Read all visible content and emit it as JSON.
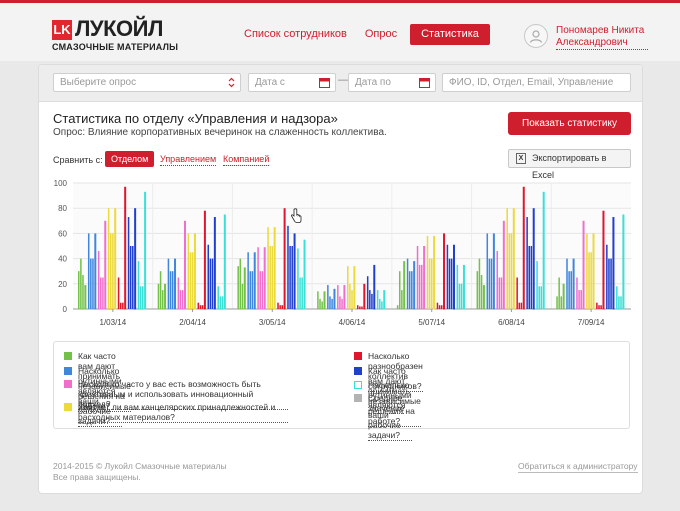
{
  "header": {
    "logo_mark": "LK",
    "logo_name": "ЛУКОЙЛ",
    "logo_sub": "СМАЗОЧНЫЕ МАТЕРИАЛЫ",
    "nav": [
      {
        "label": "Список сотрудников",
        "active": false
      },
      {
        "label": "Опрос",
        "active": false
      },
      {
        "label": "Статистика",
        "active": true
      }
    ],
    "user_name": "Пономарев Никита Александрович"
  },
  "filters": {
    "survey_placeholder": "Выберите опрос",
    "date_from_placeholder": "Дата с",
    "date_to_placeholder": "Дата по",
    "search_placeholder": "ФИО, ID, Отдел, Email, Управление",
    "dash": "—"
  },
  "main": {
    "title": "Статистика по отделу «Управления и надзора»",
    "subtitle": "Опрос: Влияние корпоративных вечеринок на слаженность коллектива.",
    "show_button": "Показать статистику",
    "compare_label": "Сравнить с:",
    "compare_options": [
      "Отделом",
      "Управлением",
      "Компанией"
    ],
    "export_button": "Экспортировать в Excel",
    "export_icon_text": "X"
  },
  "colors": {
    "accent": "#cf1f2e",
    "q1": "#74c14a",
    "q2": "#3f86de",
    "q3": "#f06ecc",
    "q4": "#ecd93a",
    "q5": "#e0152e",
    "q6": "#1f3fcf",
    "q7": "#39e0d6",
    "avg": "#b3b3b3"
  },
  "chart_data": {
    "type": "bar",
    "ylim": [
      0,
      100
    ],
    "yticks": [
      0,
      20,
      40,
      60,
      80,
      100
    ],
    "categories": [
      "1/03/14",
      "2/04/14",
      "3/05/14",
      "4/06/14",
      "5/07/14",
      "6/08/14",
      "7/09/14"
    ],
    "series": [
      {
        "name": "Как часто вам дают принимать независимые решения на работе?",
        "color": "#74c14a",
        "pattern": [
          30,
          40,
          27,
          19
        ]
      },
      {
        "name": "Насколько рутинными являются ваши рабочие задачи?",
        "color": "#3f86de",
        "pattern": [
          60,
          40,
          40,
          60
        ]
      },
      {
        "name": "Насколько часто у вас есть возможность быть креативным и использовать инновационный подход?",
        "color": "#f06ecc",
        "pattern": [
          46,
          25,
          25,
          70
        ]
      },
      {
        "name": "Хватает ли вам канцелярских принадлежностей и расходных материалов?",
        "color": "#ecd93a",
        "pattern": [
          80,
          60,
          60,
          80
        ]
      },
      {
        "name": "Насколько разнообразен коллектив сотрудников?",
        "color": "#e0152e",
        "pattern": [
          25,
          5,
          5,
          97
        ]
      },
      {
        "name": "Как часто вам дают принимать независимые решения на работе?",
        "color": "#1f3fcf",
        "pattern": [
          73,
          50,
          50,
          80
        ]
      },
      {
        "name": "Насколько рутинными являются ваши рабочие задачи?",
        "color": "#39e0d6",
        "pattern": [
          38,
          18,
          18,
          93
        ]
      },
      {
        "name": "Среднее значение",
        "color": "#b3b3b3",
        "pattern": []
      }
    ],
    "groups": [
      [
        [
          30,
          40,
          27,
          19
        ],
        [
          60,
          40,
          40,
          60
        ],
        [
          46,
          25,
          25,
          70
        ],
        [
          80,
          60,
          60,
          80
        ],
        [
          25,
          5,
          5,
          97
        ],
        [
          73,
          50,
          50,
          80
        ],
        [
          38,
          18,
          18,
          93
        ]
      ],
      [
        [
          20,
          30,
          15,
          20
        ],
        [
          40,
          30,
          30,
          40
        ],
        [
          25,
          15,
          15,
          70
        ],
        [
          60,
          45,
          45,
          60
        ],
        [
          5,
          3,
          3,
          78
        ],
        [
          51,
          40,
          40,
          73
        ],
        [
          18,
          10,
          10,
          75
        ]
      ],
      [
        [
          34,
          40,
          20,
          33
        ],
        [
          45,
          30,
          30,
          45
        ],
        [
          49,
          30,
          30,
          49
        ],
        [
          65,
          50,
          50,
          65
        ],
        [
          5,
          3,
          3,
          80
        ],
        [
          66,
          50,
          50,
          60
        ],
        [
          48,
          25,
          25,
          55
        ]
      ],
      [
        [
          14,
          8,
          6,
          14
        ],
        [
          19,
          10,
          8,
          16
        ],
        [
          19,
          10,
          8,
          19
        ],
        [
          34,
          20,
          15,
          34
        ],
        [
          3,
          2,
          2,
          20
        ],
        [
          26,
          15,
          12,
          35
        ],
        [
          15,
          8,
          6,
          15
        ]
      ],
      [
        [
          3,
          30,
          15,
          38
        ],
        [
          40,
          30,
          30,
          38
        ],
        [
          50,
          35,
          35,
          50
        ],
        [
          58,
          40,
          40,
          58
        ],
        [
          5,
          3,
          3,
          60
        ],
        [
          51,
          40,
          40,
          51
        ],
        [
          35,
          20,
          20,
          35
        ]
      ],
      [
        [
          30,
          40,
          27,
          19
        ],
        [
          60,
          40,
          40,
          60
        ],
        [
          46,
          25,
          25,
          70
        ],
        [
          80,
          60,
          60,
          80
        ],
        [
          25,
          5,
          5,
          97
        ],
        [
          73,
          50,
          50,
          80
        ],
        [
          38,
          18,
          18,
          93
        ]
      ],
      [
        [
          10,
          25,
          10,
          20
        ],
        [
          40,
          30,
          30,
          40
        ],
        [
          25,
          15,
          15,
          70
        ],
        [
          60,
          45,
          45,
          60
        ],
        [
          5,
          3,
          3,
          78
        ],
        [
          51,
          40,
          40,
          73
        ],
        [
          18,
          10,
          10,
          75
        ]
      ]
    ]
  },
  "legend": [
    {
      "label": "Как часто вам дают принимать независимые решения на работе?",
      "color": "#74c14a",
      "outline": false
    },
    {
      "label": "Насколько рутинными являются ваши рабочие задачи?",
      "color": "#3f86de",
      "outline": false
    },
    {
      "label": "Насколько часто у вас есть возможность быть креативным и использовать инновационный подход?",
      "color": "#f06ecc",
      "outline": false
    },
    {
      "label": "Хватает ли вам канцелярских принадлежностей и расходных материалов?",
      "color": "#ecd93a",
      "outline": false
    },
    {
      "label": "Насколько разнообразен коллектив сотрудников?",
      "color": "#e0152e",
      "outline": false
    },
    {
      "label": "Как часто вам дают принимать независимые решения на работе?",
      "color": "#1f3fcf",
      "outline": false
    },
    {
      "label": "Насколько рутинными являются ваши рабочие задачи?",
      "color": "#39e0d6",
      "outline": true
    },
    {
      "label": "Среднее значение",
      "color": "#b3b3b3",
      "outline": false
    }
  ],
  "footer": {
    "copyright": "2014-2015 © Лукойл Смазочные материалы",
    "rights": "Все права защищены.",
    "contact": "Обратиться к администратору"
  }
}
